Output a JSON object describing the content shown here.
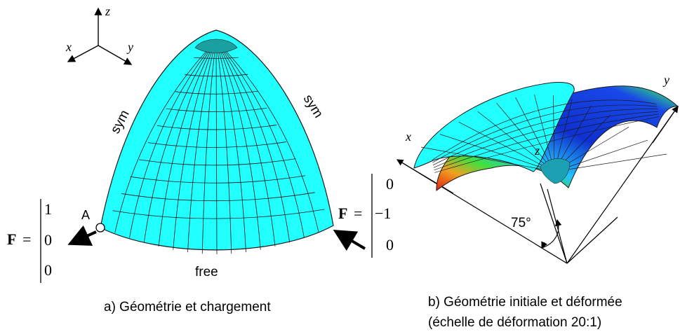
{
  "panel_a": {
    "axes": {
      "x": "x",
      "y": "y",
      "z": "z"
    },
    "sym_left": "sym",
    "sym_right": "sym",
    "free_label": "free",
    "point_label": "A",
    "force_left": {
      "symbol": "F",
      "eq": "=",
      "values": [
        "1",
        "0",
        "0"
      ]
    },
    "force_right": {
      "symbol": "F",
      "eq": "=",
      "values": [
        "0",
        "−1",
        "0"
      ]
    },
    "caption": "a) Géométrie et chargement",
    "colors": {
      "shell": "#22ffff",
      "mesh": "#1a1a1a",
      "arrow": "#000000"
    }
  },
  "panel_b": {
    "axis_x": "x",
    "axis_y": "y",
    "axis_z": "z",
    "angle_label": "75°",
    "caption_line1": "b) Géométrie initiale et déformée",
    "caption_line2": "(échelle de déformation 20:1)",
    "colors": {
      "shell": "#22ffff",
      "deformed_low": "#1030d0",
      "deformed_high": "#e02010",
      "deformed_mid": "#40e040"
    }
  }
}
